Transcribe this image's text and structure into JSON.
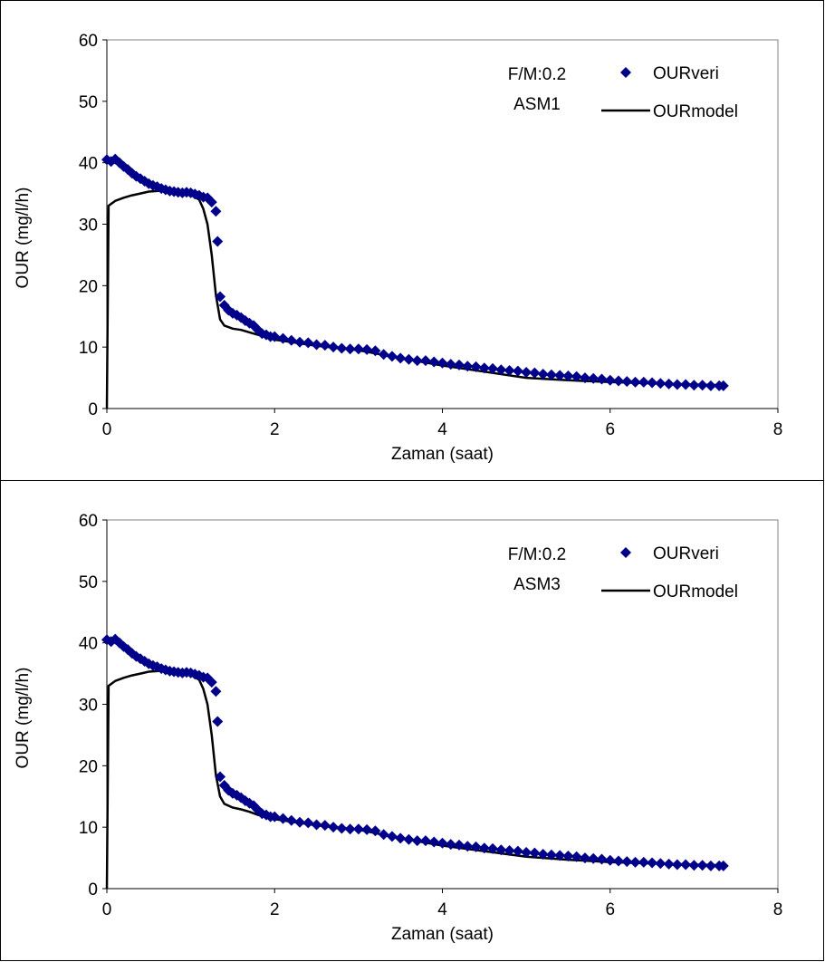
{
  "chart_data": [
    {
      "type": "scatter",
      "title": "",
      "xlabel": "Zaman (saat)",
      "ylabel": "OUR (mg/l/h)",
      "xlim": [
        0,
        8
      ],
      "ylim": [
        0,
        60
      ],
      "x_ticks": [
        "0",
        "2",
        "4",
        "6",
        "8"
      ],
      "y_ticks": [
        "0",
        "10",
        "20",
        "30",
        "40",
        "50",
        "60"
      ],
      "grid": false,
      "legend_position": "top-right",
      "annotations": [
        "F/M:0.2",
        "ASM1"
      ],
      "series": [
        {
          "name": "OURveri",
          "marker": "diamond",
          "color": "#00008B",
          "points": [
            [
              0.0,
              40.5
            ],
            [
              0.05,
              40.2
            ],
            [
              0.1,
              40.6
            ],
            [
              0.15,
              40.0
            ],
            [
              0.2,
              39.4
            ],
            [
              0.25,
              38.9
            ],
            [
              0.3,
              38.3
            ],
            [
              0.35,
              37.8
            ],
            [
              0.4,
              37.4
            ],
            [
              0.45,
              37.0
            ],
            [
              0.5,
              36.6
            ],
            [
              0.55,
              36.3
            ],
            [
              0.6,
              36.1
            ],
            [
              0.65,
              35.8
            ],
            [
              0.7,
              35.6
            ],
            [
              0.75,
              35.4
            ],
            [
              0.8,
              35.3
            ],
            [
              0.85,
              35.2
            ],
            [
              0.9,
              35.1
            ],
            [
              0.95,
              35.2
            ],
            [
              1.0,
              35.1
            ],
            [
              1.05,
              34.9
            ],
            [
              1.1,
              34.7
            ],
            [
              1.15,
              34.4
            ],
            [
              1.2,
              34.3
            ],
            [
              1.25,
              33.6
            ],
            [
              1.3,
              32.1
            ],
            [
              1.32,
              27.2
            ],
            [
              1.35,
              18.2
            ],
            [
              1.4,
              16.8
            ],
            [
              1.45,
              16.0
            ],
            [
              1.5,
              15.5
            ],
            [
              1.55,
              15.2
            ],
            [
              1.6,
              14.8
            ],
            [
              1.65,
              14.3
            ],
            [
              1.7,
              13.9
            ],
            [
              1.75,
              13.5
            ],
            [
              1.8,
              12.8
            ],
            [
              1.85,
              12.2
            ],
            [
              1.9,
              12.0
            ],
            [
              1.95,
              11.7
            ],
            [
              2.0,
              11.7
            ],
            [
              2.1,
              11.4
            ],
            [
              2.2,
              11.1
            ],
            [
              2.3,
              10.8
            ],
            [
              2.4,
              10.7
            ],
            [
              2.5,
              10.4
            ],
            [
              2.6,
              10.3
            ],
            [
              2.7,
              10.0
            ],
            [
              2.8,
              9.8
            ],
            [
              2.9,
              9.7
            ],
            [
              3.0,
              9.7
            ],
            [
              3.1,
              9.6
            ],
            [
              3.2,
              9.4
            ],
            [
              3.3,
              8.8
            ],
            [
              3.4,
              8.5
            ],
            [
              3.5,
              8.2
            ],
            [
              3.6,
              8.0
            ],
            [
              3.7,
              7.8
            ],
            [
              3.8,
              7.8
            ],
            [
              3.9,
              7.6
            ],
            [
              4.0,
              7.4
            ],
            [
              4.1,
              7.2
            ],
            [
              4.2,
              7.1
            ],
            [
              4.3,
              6.9
            ],
            [
              4.4,
              6.8
            ],
            [
              4.5,
              6.6
            ],
            [
              4.6,
              6.5
            ],
            [
              4.7,
              6.3
            ],
            [
              4.8,
              6.2
            ],
            [
              4.9,
              6.1
            ],
            [
              5.0,
              5.9
            ],
            [
              5.1,
              5.8
            ],
            [
              5.2,
              5.6
            ],
            [
              5.3,
              5.5
            ],
            [
              5.4,
              5.4
            ],
            [
              5.5,
              5.3
            ],
            [
              5.6,
              5.2
            ],
            [
              5.7,
              5.0
            ],
            [
              5.8,
              4.9
            ],
            [
              5.9,
              4.8
            ],
            [
              6.0,
              4.6
            ],
            [
              6.1,
              4.5
            ],
            [
              6.2,
              4.4
            ],
            [
              6.3,
              4.3
            ],
            [
              6.4,
              4.3
            ],
            [
              6.5,
              4.2
            ],
            [
              6.6,
              4.1
            ],
            [
              6.7,
              4.0
            ],
            [
              6.8,
              3.9
            ],
            [
              6.9,
              3.9
            ],
            [
              7.0,
              3.8
            ],
            [
              7.1,
              3.8
            ],
            [
              7.2,
              3.7
            ],
            [
              7.3,
              3.7
            ],
            [
              7.35,
              3.7
            ]
          ]
        },
        {
          "name": "OURmodel",
          "marker": "line",
          "color": "#000000",
          "points": [
            [
              0.0,
              0.0
            ],
            [
              0.02,
              33.0
            ],
            [
              0.1,
              33.8
            ],
            [
              0.2,
              34.3
            ],
            [
              0.3,
              34.7
            ],
            [
              0.4,
              35.0
            ],
            [
              0.5,
              35.3
            ],
            [
              0.6,
              35.4
            ],
            [
              0.7,
              35.5
            ],
            [
              0.8,
              35.4
            ],
            [
              0.9,
              35.2
            ],
            [
              1.0,
              34.8
            ],
            [
              1.1,
              34.0
            ],
            [
              1.15,
              32.5
            ],
            [
              1.2,
              30.0
            ],
            [
              1.25,
              25.0
            ],
            [
              1.3,
              18.5
            ],
            [
              1.35,
              14.5
            ],
            [
              1.4,
              13.5
            ],
            [
              1.5,
              13.0
            ],
            [
              1.6,
              12.8
            ],
            [
              1.7,
              12.4
            ],
            [
              1.8,
              12.0
            ],
            [
              2.0,
              11.2
            ],
            [
              2.2,
              10.8
            ],
            [
              2.5,
              10.2
            ],
            [
              3.0,
              9.5
            ],
            [
              3.5,
              8.2
            ],
            [
              4.0,
              7.0
            ],
            [
              4.5,
              6.0
            ],
            [
              5.0,
              5.0
            ],
            [
              5.5,
              4.6
            ],
            [
              6.0,
              4.3
            ],
            [
              6.5,
              4.1
            ],
            [
              7.0,
              3.9
            ],
            [
              7.35,
              3.8
            ]
          ]
        }
      ]
    },
    {
      "type": "scatter",
      "title": "",
      "xlabel": "Zaman (saat)",
      "ylabel": "OUR (mg/l/h)",
      "xlim": [
        0,
        8
      ],
      "ylim": [
        0,
        60
      ],
      "x_ticks": [
        "0",
        "2",
        "4",
        "6",
        "8"
      ],
      "y_ticks": [
        "0",
        "10",
        "20",
        "30",
        "40",
        "50",
        "60"
      ],
      "grid": false,
      "legend_position": "top-right",
      "annotations": [
        "F/M:0.2",
        "ASM3"
      ],
      "series": [
        {
          "name": "OURveri",
          "marker": "diamond",
          "color": "#00008B",
          "points": [
            [
              0.0,
              40.5
            ],
            [
              0.05,
              40.2
            ],
            [
              0.1,
              40.6
            ],
            [
              0.15,
              40.0
            ],
            [
              0.2,
              39.4
            ],
            [
              0.25,
              38.9
            ],
            [
              0.3,
              38.3
            ],
            [
              0.35,
              37.8
            ],
            [
              0.4,
              37.4
            ],
            [
              0.45,
              37.0
            ],
            [
              0.5,
              36.6
            ],
            [
              0.55,
              36.3
            ],
            [
              0.6,
              36.1
            ],
            [
              0.65,
              35.8
            ],
            [
              0.7,
              35.6
            ],
            [
              0.75,
              35.4
            ],
            [
              0.8,
              35.3
            ],
            [
              0.85,
              35.2
            ],
            [
              0.9,
              35.1
            ],
            [
              0.95,
              35.2
            ],
            [
              1.0,
              35.1
            ],
            [
              1.05,
              34.9
            ],
            [
              1.1,
              34.7
            ],
            [
              1.15,
              34.4
            ],
            [
              1.2,
              34.3
            ],
            [
              1.25,
              33.6
            ],
            [
              1.3,
              32.1
            ],
            [
              1.32,
              27.2
            ],
            [
              1.35,
              18.2
            ],
            [
              1.4,
              16.8
            ],
            [
              1.45,
              16.0
            ],
            [
              1.5,
              15.5
            ],
            [
              1.55,
              15.2
            ],
            [
              1.6,
              14.8
            ],
            [
              1.65,
              14.3
            ],
            [
              1.7,
              13.9
            ],
            [
              1.75,
              13.5
            ],
            [
              1.8,
              12.8
            ],
            [
              1.85,
              12.2
            ],
            [
              1.9,
              12.0
            ],
            [
              1.95,
              11.7
            ],
            [
              2.0,
              11.7
            ],
            [
              2.1,
              11.4
            ],
            [
              2.2,
              11.1
            ],
            [
              2.3,
              10.8
            ],
            [
              2.4,
              10.7
            ],
            [
              2.5,
              10.4
            ],
            [
              2.6,
              10.3
            ],
            [
              2.7,
              10.0
            ],
            [
              2.8,
              9.8
            ],
            [
              2.9,
              9.7
            ],
            [
              3.0,
              9.7
            ],
            [
              3.1,
              9.6
            ],
            [
              3.2,
              9.4
            ],
            [
              3.3,
              8.8
            ],
            [
              3.4,
              8.5
            ],
            [
              3.5,
              8.2
            ],
            [
              3.6,
              8.0
            ],
            [
              3.7,
              7.8
            ],
            [
              3.8,
              7.8
            ],
            [
              3.9,
              7.6
            ],
            [
              4.0,
              7.4
            ],
            [
              4.1,
              7.2
            ],
            [
              4.2,
              7.1
            ],
            [
              4.3,
              6.9
            ],
            [
              4.4,
              6.8
            ],
            [
              4.5,
              6.6
            ],
            [
              4.6,
              6.5
            ],
            [
              4.7,
              6.3
            ],
            [
              4.8,
              6.2
            ],
            [
              4.9,
              6.1
            ],
            [
              5.0,
              5.9
            ],
            [
              5.1,
              5.8
            ],
            [
              5.2,
              5.6
            ],
            [
              5.3,
              5.5
            ],
            [
              5.4,
              5.4
            ],
            [
              5.5,
              5.3
            ],
            [
              5.6,
              5.2
            ],
            [
              5.7,
              5.0
            ],
            [
              5.8,
              4.9
            ],
            [
              5.9,
              4.8
            ],
            [
              6.0,
              4.6
            ],
            [
              6.1,
              4.5
            ],
            [
              6.2,
              4.4
            ],
            [
              6.3,
              4.3
            ],
            [
              6.4,
              4.3
            ],
            [
              6.5,
              4.2
            ],
            [
              6.6,
              4.1
            ],
            [
              6.7,
              4.0
            ],
            [
              6.8,
              3.9
            ],
            [
              6.9,
              3.9
            ],
            [
              7.0,
              3.8
            ],
            [
              7.1,
              3.8
            ],
            [
              7.2,
              3.7
            ],
            [
              7.3,
              3.7
            ],
            [
              7.35,
              3.7
            ]
          ]
        },
        {
          "name": "OURmodel",
          "marker": "line",
          "color": "#000000",
          "points": [
            [
              0.0,
              0.0
            ],
            [
              0.02,
              33.0
            ],
            [
              0.1,
              33.8
            ],
            [
              0.2,
              34.3
            ],
            [
              0.3,
              34.7
            ],
            [
              0.4,
              35.0
            ],
            [
              0.5,
              35.3
            ],
            [
              0.6,
              35.4
            ],
            [
              0.7,
              35.5
            ],
            [
              0.8,
              35.4
            ],
            [
              0.9,
              35.2
            ],
            [
              1.0,
              34.8
            ],
            [
              1.1,
              34.0
            ],
            [
              1.15,
              32.5
            ],
            [
              1.2,
              30.0
            ],
            [
              1.25,
              25.0
            ],
            [
              1.3,
              18.5
            ],
            [
              1.35,
              15.0
            ],
            [
              1.4,
              13.8
            ],
            [
              1.5,
              13.2
            ],
            [
              1.6,
              12.9
            ],
            [
              1.7,
              12.5
            ],
            [
              1.8,
              12.0
            ],
            [
              2.0,
              11.3
            ],
            [
              2.2,
              10.9
            ],
            [
              2.5,
              10.3
            ],
            [
              3.0,
              9.6
            ],
            [
              3.5,
              8.2
            ],
            [
              4.0,
              7.0
            ],
            [
              4.5,
              6.1
            ],
            [
              5.0,
              5.2
            ],
            [
              5.5,
              4.7
            ],
            [
              6.0,
              4.3
            ],
            [
              6.5,
              4.1
            ],
            [
              7.0,
              3.9
            ],
            [
              7.35,
              3.8
            ]
          ]
        }
      ]
    }
  ]
}
